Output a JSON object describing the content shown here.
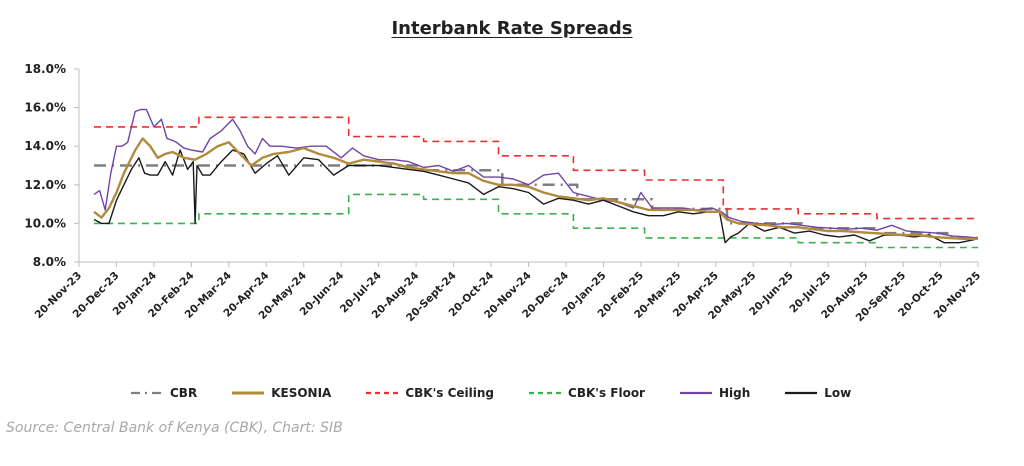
{
  "chart_data": {
    "type": "line",
    "title": "Interbank Rate Spreads",
    "xlabel": "",
    "ylabel": "",
    "ylim": [
      8.0,
      18.0
    ],
    "y_ticks": [
      "8.0%",
      "10.0%",
      "12.0%",
      "14.0%",
      "16.0%",
      "18.0%"
    ],
    "y_tick_values": [
      8,
      10,
      12,
      14,
      16,
      18
    ],
    "x_ticks": [
      "20-Nov-23",
      "20-Dec-23",
      "20-Jan-24",
      "20-Feb-24",
      "20-Mar-24",
      "20-Apr-24",
      "20-May-24",
      "20-Jun-24",
      "20-Jul-24",
      "20-Aug-24",
      "20-Sept-24",
      "20-Oct-24",
      "20-Nov-24",
      "20-Dec-24",
      "20-Jan-25",
      "20-Feb-25",
      "20-Mar-25",
      "20-Apr-25",
      "20-May-25",
      "20-Jun-25",
      "20-Jul-25",
      "20-Aug-25",
      "20-Sept-25",
      "20-Oct-25",
      "20-Nov-25"
    ],
    "x_unit": "months since 20-Nov-23",
    "xlim": [
      0,
      24
    ],
    "grid": false,
    "legend_position": "bottom",
    "series": [
      {
        "name": "CBR",
        "color": "#7f7f7f",
        "style": "dash-dot",
        "x": [
          0.4,
          1.4,
          1.4,
          9.1,
          9.1,
          11.3,
          11.3,
          13.3,
          13.3,
          15.3,
          15.3,
          17.3,
          17.3,
          19.3,
          19.3,
          21.3,
          21.3,
          23.3,
          23.3,
          24
        ],
        "values": [
          13.0,
          13.0,
          13.0,
          13.0,
          12.75,
          12.75,
          12.0,
          12.0,
          11.25,
          11.25,
          10.75,
          10.75,
          10.0,
          10.0,
          9.75,
          9.75,
          9.5,
          9.5,
          9.25,
          9.25
        ]
      },
      {
        "name": "KESONIA",
        "color": "#b28a3c",
        "style": "solid",
        "x": [
          0.4,
          0.6,
          0.8,
          1.0,
          1.2,
          1.5,
          1.7,
          1.9,
          2.1,
          2.3,
          2.5,
          2.8,
          3.1,
          3.4,
          3.7,
          4.0,
          4.3,
          4.6,
          4.9,
          5.2,
          5.6,
          6.0,
          6.4,
          6.8,
          7.2,
          7.6,
          8.0,
          8.4,
          8.8,
          9.2,
          9.6,
          10.0,
          10.4,
          10.8,
          11.2,
          11.6,
          12.0,
          12.4,
          12.8,
          13.2,
          13.6,
          14.0,
          14.4,
          14.8,
          15.2,
          15.6,
          16.0,
          16.4,
          16.8,
          17.1,
          17.3,
          17.6,
          18.0,
          18.4,
          18.8,
          19.2,
          19.6,
          20.0,
          20.4,
          20.8,
          21.2,
          21.6,
          22.0,
          22.4,
          22.8,
          23.2,
          23.6,
          24.0
        ],
        "values": [
          10.6,
          10.3,
          10.8,
          11.6,
          12.6,
          13.8,
          14.4,
          14.0,
          13.4,
          13.6,
          13.7,
          13.4,
          13.3,
          13.6,
          14.0,
          14.2,
          13.6,
          13.0,
          13.4,
          13.6,
          13.7,
          13.9,
          13.6,
          13.4,
          13.1,
          13.3,
          13.2,
          13.1,
          12.9,
          12.8,
          12.7,
          12.6,
          12.6,
          12.2,
          12.0,
          12.0,
          11.9,
          11.6,
          11.4,
          11.3,
          11.2,
          11.3,
          11.1,
          10.9,
          10.7,
          10.7,
          10.7,
          10.7,
          10.6,
          10.6,
          10.2,
          10.0,
          9.95,
          9.9,
          9.8,
          9.8,
          9.7,
          9.6,
          9.6,
          9.55,
          9.5,
          9.45,
          9.4,
          9.4,
          9.3,
          9.25,
          9.2,
          9.2
        ]
      },
      {
        "name": "CBK's Ceiling",
        "color": "#e8312f",
        "style": "dashed",
        "x": [
          0.4,
          3.2,
          3.2,
          7.2,
          7.2,
          9.2,
          9.2,
          11.2,
          11.2,
          13.2,
          13.2,
          15.1,
          15.1,
          17.2,
          17.2,
          19.2,
          19.2,
          21.3,
          21.3,
          24
        ],
        "values": [
          15.0,
          15.0,
          15.5,
          15.5,
          14.5,
          14.5,
          14.25,
          14.25,
          13.5,
          13.5,
          12.75,
          12.75,
          12.25,
          12.25,
          10.75,
          10.75,
          10.5,
          10.5,
          10.25,
          10.25
        ]
      },
      {
        "name": "CBK's Floor",
        "color": "#3bb04c",
        "style": "dashed",
        "x": [
          0.4,
          3.2,
          3.2,
          7.2,
          7.2,
          9.2,
          9.2,
          11.2,
          11.2,
          13.2,
          13.2,
          15.1,
          15.1,
          17.2,
          17.2,
          19.2,
          19.2,
          21.3,
          21.3,
          24
        ],
        "values": [
          10.0,
          10.0,
          10.5,
          10.5,
          11.5,
          11.5,
          11.25,
          11.25,
          10.5,
          10.5,
          9.75,
          9.75,
          9.25,
          9.25,
          9.25,
          9.25,
          9.0,
          9.0,
          8.75,
          8.75
        ]
      },
      {
        "name": "High",
        "color": "#7044a8",
        "style": "solid",
        "x": [
          0.4,
          0.55,
          0.7,
          0.85,
          1.0,
          1.15,
          1.3,
          1.5,
          1.65,
          1.8,
          2.0,
          2.2,
          2.35,
          2.5,
          2.6,
          2.8,
          3.0,
          3.3,
          3.5,
          3.8,
          4.1,
          4.3,
          4.5,
          4.7,
          4.9,
          5.1,
          5.4,
          5.8,
          6.2,
          6.6,
          7.0,
          7.3,
          7.6,
          8.0,
          8.4,
          8.8,
          9.2,
          9.6,
          10.0,
          10.4,
          10.8,
          11.2,
          11.6,
          12.0,
          12.4,
          12.8,
          13.2,
          13.6,
          14.0,
          14.4,
          14.8,
          15.0,
          15.3,
          15.7,
          16.1,
          16.5,
          16.9,
          17.15,
          17.35,
          17.7,
          18.1,
          18.5,
          18.9,
          19.3,
          19.7,
          20.1,
          20.5,
          20.9,
          21.3,
          21.7,
          22.1,
          22.5,
          22.9,
          23.3,
          23.7,
          24.0
        ],
        "values": [
          11.5,
          11.7,
          10.7,
          12.6,
          14.0,
          14.0,
          14.2,
          15.8,
          15.9,
          15.9,
          15.0,
          15.4,
          14.4,
          14.3,
          14.2,
          13.9,
          13.8,
          13.7,
          14.4,
          14.8,
          15.4,
          14.8,
          14.0,
          13.6,
          14.4,
          14.0,
          14.0,
          13.9,
          14.0,
          14.0,
          13.4,
          13.9,
          13.5,
          13.3,
          13.3,
          13.2,
          12.9,
          13.0,
          12.7,
          13.0,
          12.4,
          12.4,
          12.3,
          12.0,
          12.5,
          12.6,
          11.6,
          11.4,
          11.2,
          11.1,
          10.8,
          11.6,
          10.8,
          10.8,
          10.8,
          10.7,
          10.8,
          10.6,
          10.3,
          10.1,
          10.0,
          9.95,
          10.0,
          9.9,
          9.8,
          9.75,
          9.7,
          9.75,
          9.65,
          9.9,
          9.6,
          9.55,
          9.5,
          9.35,
          9.3,
          9.25
        ]
      },
      {
        "name": "Low",
        "color": "#1a1a1a",
        "style": "solid",
        "x": [
          0.4,
          0.6,
          0.8,
          1.0,
          1.2,
          1.4,
          1.6,
          1.75,
          1.9,
          2.1,
          2.3,
          2.5,
          2.7,
          2.9,
          3.05,
          3.1,
          3.15,
          3.3,
          3.5,
          3.8,
          4.1,
          4.4,
          4.7,
          5.0,
          5.3,
          5.6,
          6.0,
          6.4,
          6.8,
          7.2,
          7.6,
          8.0,
          8.4,
          8.8,
          9.2,
          9.6,
          10.0,
          10.4,
          10.8,
          11.2,
          11.6,
          12.0,
          12.4,
          12.8,
          13.2,
          13.6,
          14.0,
          14.4,
          14.8,
          15.2,
          15.6,
          16.0,
          16.4,
          16.8,
          17.1,
          17.25,
          17.4,
          17.6,
          17.9,
          18.3,
          18.7,
          19.1,
          19.5,
          19.9,
          20.3,
          20.7,
          21.1,
          21.5,
          21.9,
          22.3,
          22.7,
          23.1,
          23.5,
          24.0
        ],
        "values": [
          10.2,
          10.0,
          10.0,
          11.2,
          12.0,
          12.8,
          13.4,
          12.6,
          12.5,
          12.5,
          13.2,
          12.5,
          13.8,
          12.8,
          13.2,
          10.0,
          13.0,
          12.5,
          12.5,
          13.2,
          13.8,
          13.6,
          12.6,
          13.1,
          13.5,
          12.5,
          13.4,
          13.3,
          12.5,
          13.0,
          13.0,
          13.0,
          12.9,
          12.8,
          12.7,
          12.5,
          12.3,
          12.1,
          11.5,
          11.9,
          11.8,
          11.6,
          11.0,
          11.3,
          11.2,
          11.0,
          11.2,
          10.9,
          10.6,
          10.4,
          10.4,
          10.6,
          10.5,
          10.6,
          10.6,
          9.0,
          9.3,
          9.5,
          10.0,
          9.6,
          9.8,
          9.5,
          9.6,
          9.4,
          9.3,
          9.4,
          9.1,
          9.4,
          9.4,
          9.3,
          9.4,
          9.0,
          9.0,
          9.2
        ]
      }
    ]
  },
  "source_text": "Source: Central Bank of Kenya (CBK), Chart: SIB"
}
